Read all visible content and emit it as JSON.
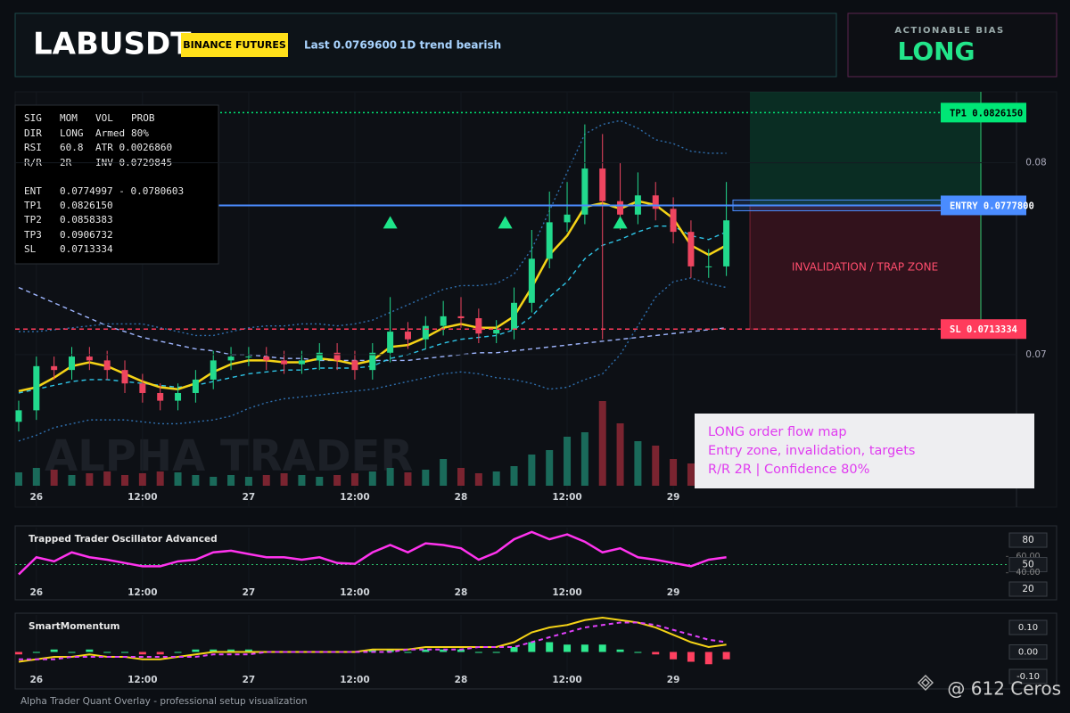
{
  "header": {
    "title": "LABUSDT",
    "badge": "BINANCE FUTURES",
    "last": "Last 0.0769600",
    "trend": "1D trend bearish"
  },
  "bias": {
    "label": "ACTIONABLE BIAS",
    "value": "LONG"
  },
  "info_panel": {
    "rows": [
      [
        "SIG",
        "MOM",
        "VOL",
        "PROB"
      ],
      [
        "DIR",
        "LONG",
        "Armed",
        "80%"
      ],
      [
        "RSI",
        "60.8",
        "ATR 0.0026860"
      ],
      [
        "R/R",
        "2R",
        "INV 0.0729845"
      ],
      [
        "ENT",
        "0.0774997 - 0.0780603"
      ],
      [
        "TP1",
        "0.0826150"
      ],
      [
        "TP2",
        "0.0858383"
      ],
      [
        "TP3",
        "0.0906732"
      ],
      [
        "SL",
        "0.0713334"
      ]
    ]
  },
  "annotation": {
    "lines": [
      "LONG order flow map",
      "Entry zone, invalidation, targets",
      "R/R 2R | Confidence 80%"
    ]
  },
  "zone_label": "INVALIDATION / TRAP ZONE",
  "watermark": "ALPHA TRADER",
  "footer": "Alpha Trader Quant Overlay - professional setup visualization",
  "credit": "@ 612 Ceros",
  "chart_data": [
    {
      "type": "candlestick",
      "x": [
        -2,
        0,
        2,
        4,
        6,
        8,
        10,
        12,
        14,
        16,
        18,
        20,
        22,
        24,
        26,
        28,
        30,
        32,
        34,
        36,
        38,
        40,
        42,
        44,
        46,
        48,
        50,
        52,
        54,
        56,
        58,
        60,
        62,
        64,
        66,
        68,
        70,
        72,
        74,
        76,
        78
      ],
      "open": [
        0.0665,
        0.0671,
        0.0694,
        0.0692,
        0.0699,
        0.0697,
        0.0692,
        0.0685,
        0.068,
        0.0676,
        0.068,
        0.0687,
        0.0697,
        0.0699,
        0.0699,
        0.0697,
        0.0695,
        0.0697,
        0.0701,
        0.0697,
        0.0692,
        0.0701,
        0.0712,
        0.0708,
        0.0715,
        0.072,
        0.0719,
        0.0711,
        0.0713,
        0.0727,
        0.075,
        0.0769,
        0.0773,
        0.0797,
        0.078,
        0.0773,
        0.0783,
        0.0776,
        0.0764,
        0.0746,
        0.0746
      ],
      "high": [
        0.0676,
        0.0699,
        0.0699,
        0.0704,
        0.0704,
        0.0702,
        0.0697,
        0.069,
        0.0685,
        0.0685,
        0.0692,
        0.0702,
        0.0704,
        0.0704,
        0.0704,
        0.0702,
        0.0702,
        0.0706,
        0.0706,
        0.0702,
        0.0706,
        0.073,
        0.0717,
        0.072,
        0.0728,
        0.073,
        0.0724,
        0.0718,
        0.0735,
        0.0765,
        0.0785,
        0.079,
        0.082,
        0.0815,
        0.08,
        0.0795,
        0.079,
        0.0782,
        0.077,
        0.0755,
        0.079
      ],
      "low": [
        0.066,
        0.0666,
        0.0687,
        0.0687,
        0.0692,
        0.0687,
        0.068,
        0.0675,
        0.0671,
        0.0671,
        0.0675,
        0.0682,
        0.0692,
        0.0694,
        0.0692,
        0.069,
        0.069,
        0.0692,
        0.0692,
        0.0687,
        0.0687,
        0.0696,
        0.0703,
        0.0703,
        0.071,
        0.0714,
        0.0706,
        0.0706,
        0.0708,
        0.0722,
        0.0745,
        0.0764,
        0.0768,
        0.0708,
        0.0765,
        0.0768,
        0.077,
        0.0758,
        0.074,
        0.074,
        0.0741
      ],
      "close": [
        0.0671,
        0.0694,
        0.0692,
        0.0699,
        0.0697,
        0.0692,
        0.0685,
        0.068,
        0.0676,
        0.068,
        0.0687,
        0.0697,
        0.0699,
        0.0699,
        0.0697,
        0.0695,
        0.0697,
        0.0701,
        0.0697,
        0.0692,
        0.0701,
        0.0712,
        0.0708,
        0.0715,
        0.072,
        0.0719,
        0.0711,
        0.0713,
        0.0727,
        0.075,
        0.0769,
        0.0773,
        0.0797,
        0.078,
        0.0773,
        0.0783,
        0.0776,
        0.0764,
        0.0746,
        0.0746,
        0.077
      ],
      "volume": [
        15,
        20,
        18,
        12,
        14,
        16,
        12,
        14,
        16,
        15,
        12,
        10,
        12,
        10,
        12,
        14,
        12,
        10,
        12,
        14,
        16,
        20,
        15,
        18,
        30,
        20,
        14,
        16,
        22,
        35,
        40,
        55,
        60,
        95,
        70,
        50,
        45,
        30,
        25,
        20,
        15
      ],
      "up_color": "#22d98d",
      "down_color": "#ee4560",
      "volume_up_color": "#1a6a5a",
      "volume_down_color": "#7a2430",
      "lines": [
        {
          "color": "#9fb6ff",
          "style": "dashed",
          "values": [
            0.0735,
            0.0731,
            0.0727,
            0.0723,
            0.0719,
            0.0715,
            0.0712,
            0.0709,
            0.0707,
            0.0705,
            0.0703,
            0.0702,
            0.07,
            0.07,
            0.0699,
            0.0698,
            0.0698,
            0.0697,
            0.0697,
            0.0697,
            0.0697,
            0.0697,
            0.0697,
            0.0698,
            0.0699,
            0.07,
            0.0701,
            0.0701,
            0.0702,
            0.0703,
            0.0704,
            0.0705,
            0.0706,
            0.0707,
            0.0708,
            0.0709,
            0.071,
            0.0711,
            0.0712,
            0.0713,
            0.0714
          ]
        },
        {
          "color": "#2f6fae",
          "style": "dotted",
          "values": [
            0.0712,
            0.0712,
            0.0713,
            0.0714,
            0.0715,
            0.0716,
            0.0716,
            0.0716,
            0.0714,
            0.0712,
            0.071,
            0.071,
            0.0712,
            0.0714,
            0.0715,
            0.0715,
            0.0716,
            0.0716,
            0.0715,
            0.0716,
            0.0718,
            0.0722,
            0.0726,
            0.073,
            0.0734,
            0.0736,
            0.0736,
            0.0737,
            0.0742,
            0.0755,
            0.0775,
            0.0795,
            0.0815,
            0.082,
            0.0822,
            0.0818,
            0.0812,
            0.081,
            0.0806,
            0.0805,
            0.0805
          ]
        },
        {
          "color": "#2f6fae",
          "style": "dotted",
          "values": [
            0.0655,
            0.0658,
            0.0662,
            0.0664,
            0.0666,
            0.0666,
            0.0666,
            0.0665,
            0.0664,
            0.0664,
            0.0665,
            0.0666,
            0.0668,
            0.0672,
            0.0675,
            0.0677,
            0.0678,
            0.0679,
            0.068,
            0.0681,
            0.0682,
            0.0684,
            0.0686,
            0.0688,
            0.069,
            0.0691,
            0.069,
            0.0688,
            0.0687,
            0.0685,
            0.0682,
            0.0683,
            0.0687,
            0.069,
            0.07,
            0.0715,
            0.073,
            0.0738,
            0.074,
            0.0737,
            0.0735
          ]
        },
        {
          "color": "#2ec4e6",
          "style": "dashed",
          "values": [
            0.068,
            0.0682,
            0.0684,
            0.0686,
            0.0687,
            0.0687,
            0.0686,
            0.0685,
            0.0684,
            0.0683,
            0.0684,
            0.0686,
            0.0688,
            0.069,
            0.0691,
            0.0692,
            0.0692,
            0.0693,
            0.0693,
            0.0693,
            0.0694,
            0.0698,
            0.07,
            0.0703,
            0.0706,
            0.0708,
            0.0709,
            0.071,
            0.0713,
            0.072,
            0.073,
            0.0738,
            0.075,
            0.0757,
            0.076,
            0.0764,
            0.0767,
            0.0767,
            0.0762,
            0.076,
            0.0764
          ]
        },
        {
          "color": "#f5d316",
          "style": "solid",
          "values": [
            0.0681,
            0.0683,
            0.0688,
            0.0694,
            0.0696,
            0.0694,
            0.069,
            0.0686,
            0.0683,
            0.0682,
            0.0685,
            0.0691,
            0.0695,
            0.0697,
            0.0697,
            0.0696,
            0.0696,
            0.0698,
            0.0697,
            0.0695,
            0.0697,
            0.0704,
            0.0705,
            0.0709,
            0.0714,
            0.0716,
            0.0714,
            0.0714,
            0.072,
            0.0735,
            0.0752,
            0.0762,
            0.0777,
            0.0779,
            0.0776,
            0.078,
            0.0778,
            0.0771,
            0.0757,
            0.0752,
            0.0757
          ]
        }
      ],
      "signals": {
        "x": [
          40,
          53,
          66
        ],
        "y": [
          0.0769,
          0.0769,
          0.0769
        ],
        "color": "#1ee58a"
      },
      "levels": [
        {
          "value": 0.082615,
          "label": "TP1 0.0826150",
          "color": "#00e676",
          "text_color": "#000000",
          "style": "dotted"
        },
        {
          "value": 0.07778,
          "label": "ENTRY 0.0777800",
          "color": "#4a8cff",
          "text_color": "#ffffff",
          "style": "solid"
        },
        {
          "value": 0.0713334,
          "label": "SL 0.0713334",
          "color": "#ff3b5c",
          "text_color": "#ffffff",
          "style": "dashed"
        }
      ],
      "entry_zone": [
        0.0774997,
        0.0780603
      ],
      "xlim": [
        -2.4,
        110.8
      ],
      "ylim": [
        0.0621,
        0.0837
      ],
      "xticks": [
        {
          "value": 0,
          "label": "26"
        },
        {
          "value": 12,
          "label": "12:00"
        },
        {
          "value": 24,
          "label": "27"
        },
        {
          "value": 36,
          "label": "12:00"
        },
        {
          "value": 48,
          "label": "28"
        },
        {
          "value": 60,
          "label": "12:00"
        },
        {
          "value": 72,
          "label": "29"
        }
      ],
      "yticks": [
        0.08,
        0.07
      ],
      "grid": true
    },
    {
      "type": "line",
      "title": "Trapped Trader Oscillator Advanced",
      "x": [
        -2,
        0,
        2,
        4,
        6,
        8,
        10,
        12,
        14,
        16,
        18,
        20,
        22,
        24,
        26,
        28,
        30,
        32,
        34,
        36,
        38,
        40,
        42,
        44,
        46,
        48,
        50,
        52,
        54,
        56,
        58,
        60,
        62,
        64,
        66,
        68,
        70,
        72,
        74,
        76,
        78
      ],
      "values": [
        38,
        59,
        54,
        65,
        59,
        56,
        52,
        48,
        48,
        54,
        56,
        65,
        67,
        63,
        59,
        59,
        56,
        59,
        52,
        51,
        65,
        74,
        65,
        76,
        74,
        70,
        56,
        65,
        81,
        90,
        81,
        87,
        78,
        65,
        70,
        59,
        56,
        52,
        48,
        56,
        59
      ],
      "color": "#ff33ee",
      "reference_line": 50,
      "reference_color": "#2ecc71",
      "xlim": [
        -2.4,
        110.8
      ],
      "ylim": [
        8,
        95.3
      ],
      "xticks": [
        {
          "value": 0,
          "label": "26"
        },
        {
          "value": 12,
          "label": "12:00"
        },
        {
          "value": 24,
          "label": "27"
        },
        {
          "value": 36,
          "label": "12:00"
        },
        {
          "value": 48,
          "label": "28"
        },
        {
          "value": 60,
          "label": "12:00"
        },
        {
          "value": 72,
          "label": "29"
        }
      ],
      "yticks": [
        80,
        {
          "value": 60,
          "label": "60.00"
        },
        50,
        {
          "value": 40,
          "label": "40.00"
        },
        20
      ]
    },
    {
      "type": "macd",
      "title": "SmartMomentum",
      "x": [
        -2,
        0,
        2,
        4,
        6,
        8,
        10,
        12,
        14,
        16,
        18,
        20,
        22,
        24,
        26,
        28,
        30,
        32,
        34,
        36,
        38,
        40,
        42,
        44,
        46,
        48,
        50,
        52,
        54,
        56,
        58,
        60,
        62,
        64,
        66,
        68,
        70,
        72,
        74,
        76,
        78
      ],
      "histogram": [
        -0.01,
        0.0,
        0.01,
        0.0,
        0.01,
        0.0,
        0.0,
        -0.01,
        -0.01,
        0.0,
        0.01,
        0.01,
        0.01,
        0.01,
        0.0,
        0.0,
        0.0,
        0.0,
        0.0,
        0.0,
        0.01,
        0.01,
        0.0,
        0.01,
        0.01,
        0.01,
        0.0,
        0.0,
        0.02,
        0.04,
        0.04,
        0.03,
        0.03,
        0.03,
        0.01,
        0.0,
        -0.01,
        -0.03,
        -0.04,
        -0.05,
        -0.03
      ],
      "positive_color": "#2ee88f",
      "negative_color": "#ff4060",
      "lines": [
        {
          "color": "#f5d316",
          "style": "solid",
          "values": [
            -0.04,
            -0.03,
            -0.02,
            -0.02,
            -0.01,
            -0.02,
            -0.02,
            -0.03,
            -0.03,
            -0.02,
            -0.01,
            0.0,
            0.0,
            0.0,
            0.0,
            0.0,
            0.0,
            0.0,
            0.0,
            0.0,
            0.01,
            0.01,
            0.01,
            0.02,
            0.02,
            0.02,
            0.02,
            0.02,
            0.04,
            0.08,
            0.1,
            0.11,
            0.13,
            0.14,
            0.13,
            0.12,
            0.1,
            0.07,
            0.04,
            0.02,
            0.03
          ]
        },
        {
          "color": "#e040fb",
          "style": "dashed",
          "values": [
            -0.03,
            -0.03,
            -0.03,
            -0.02,
            -0.02,
            -0.02,
            -0.02,
            -0.02,
            -0.02,
            -0.02,
            -0.02,
            -0.01,
            -0.01,
            -0.01,
            0.0,
            0.0,
            0.0,
            0.0,
            0.0,
            0.0,
            0.0,
            0.0,
            0.01,
            0.01,
            0.01,
            0.01,
            0.02,
            0.02,
            0.02,
            0.04,
            0.06,
            0.08,
            0.1,
            0.11,
            0.12,
            0.12,
            0.11,
            0.09,
            0.07,
            0.05,
            0.04
          ]
        }
      ],
      "xlim": [
        -2.4,
        110.8
      ],
      "ylim": [
        -0.14,
        0.151
      ],
      "xticks": [
        {
          "value": 0,
          "label": "26"
        },
        {
          "value": 12,
          "label": "12:00"
        },
        {
          "value": 24,
          "label": "27"
        },
        {
          "value": 36,
          "label": "12:00"
        },
        {
          "value": 48,
          "label": "28"
        },
        {
          "value": 60,
          "label": "12:00"
        },
        {
          "value": 72,
          "label": "29"
        }
      ],
      "yticks": [
        {
          "value": 0.1,
          "label": "0.10"
        },
        {
          "value": 0,
          "label": "0.00"
        },
        {
          "value": -0.1,
          "label": "-0.10"
        }
      ]
    }
  ]
}
